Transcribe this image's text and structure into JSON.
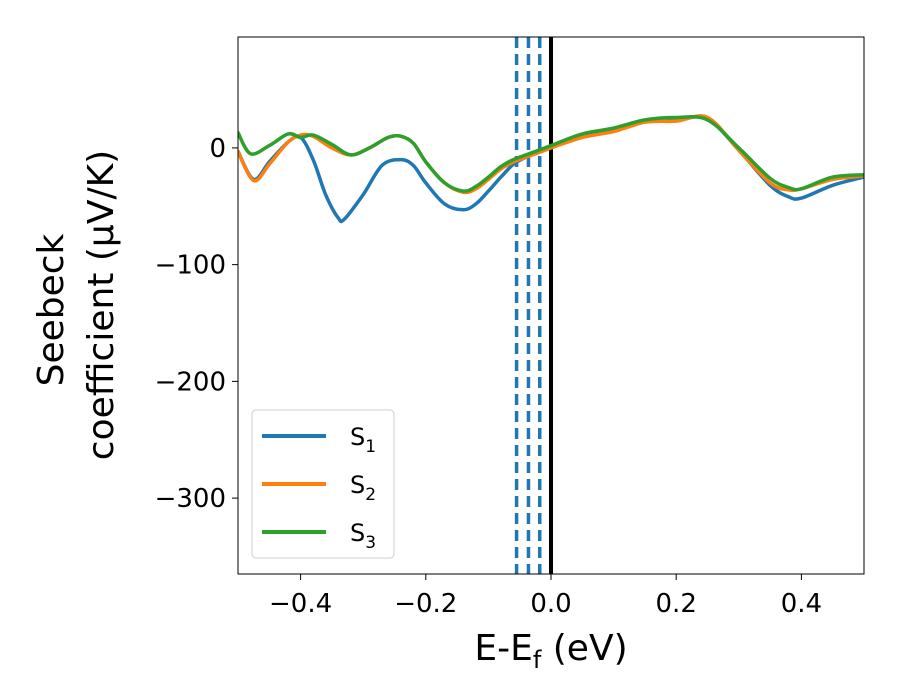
{
  "chart_data": {
    "type": "line",
    "title": "",
    "xlabel": "E-E",
    "xlabel_sub": "f",
    "xlabel_unit": " (eV)",
    "ylabel_line1": "Seebeck",
    "ylabel_line2": "coefficient  (μV/K)",
    "xlim": [
      -0.5,
      0.5
    ],
    "ylim": [
      -365,
      95
    ],
    "xticks": [
      -0.4,
      -0.2,
      0.0,
      0.2,
      0.4
    ],
    "xtick_labels": [
      "−0.4",
      "−0.2",
      "0.0",
      "0.2",
      "0.4"
    ],
    "yticks": [
      0,
      -100,
      -200,
      -300
    ],
    "ytick_labels": [
      "0",
      "−100",
      "−200",
      "−300"
    ],
    "legend_position": "lower-left",
    "vlines": [
      {
        "x": -0.055,
        "style": "dashed",
        "color": "#1f77b4"
      },
      {
        "x": -0.036,
        "style": "dashed",
        "color": "#1f77b4"
      },
      {
        "x": -0.018,
        "style": "dashed",
        "color": "#1f77b4"
      },
      {
        "x": 0.0,
        "style": "solid",
        "color": "#000000"
      }
    ],
    "series": [
      {
        "name": "S",
        "sub": "1",
        "color": "#1f77b4",
        "x": [
          -0.5,
          -0.475,
          -0.45,
          -0.42,
          -0.4,
          -0.38,
          -0.36,
          -0.34,
          -0.33,
          -0.3,
          -0.27,
          -0.24,
          -0.22,
          -0.2,
          -0.17,
          -0.14,
          -0.12,
          -0.1,
          -0.08,
          -0.06,
          -0.04,
          -0.02,
          0.0,
          0.05,
          0.1,
          0.15,
          0.2,
          0.25,
          0.3,
          0.35,
          0.38,
          0.4,
          0.45,
          0.5
        ],
        "y": [
          -3,
          -27,
          -12,
          5,
          9,
          -10,
          -40,
          -60,
          -61,
          -40,
          -15,
          -10,
          -15,
          -30,
          -48,
          -53,
          -48,
          -37,
          -25,
          -14,
          -8,
          -4,
          0,
          10,
          15,
          23,
          24,
          25,
          -2,
          -32,
          -42,
          -43,
          -32,
          -25
        ]
      },
      {
        "name": "S",
        "sub": "2",
        "color": "#ff7f0e",
        "x": [
          -0.5,
          -0.475,
          -0.45,
          -0.42,
          -0.4,
          -0.38,
          -0.35,
          -0.32,
          -0.29,
          -0.26,
          -0.24,
          -0.22,
          -0.2,
          -0.17,
          -0.14,
          -0.12,
          -0.1,
          -0.08,
          -0.06,
          -0.04,
          -0.02,
          0.0,
          0.05,
          0.1,
          0.15,
          0.2,
          0.25,
          0.3,
          0.35,
          0.38,
          0.4,
          0.45,
          0.5
        ],
        "y": [
          -3,
          -28,
          -14,
          5,
          11,
          10,
          0,
          -6,
          0,
          9,
          10,
          4,
          -12,
          -30,
          -38,
          -35,
          -27,
          -18,
          -12,
          -8,
          -4,
          0,
          9,
          14,
          22,
          23,
          26,
          -2,
          -30,
          -36,
          -35,
          -27,
          -24
        ]
      },
      {
        "name": "S",
        "sub": "3",
        "color": "#2ca02c",
        "x": [
          -0.5,
          -0.48,
          -0.45,
          -0.42,
          -0.4,
          -0.38,
          -0.35,
          -0.32,
          -0.29,
          -0.26,
          -0.24,
          -0.22,
          -0.2,
          -0.17,
          -0.14,
          -0.12,
          -0.1,
          -0.08,
          -0.06,
          -0.04,
          -0.02,
          0.0,
          0.05,
          0.1,
          0.15,
          0.2,
          0.25,
          0.3,
          0.35,
          0.38,
          0.4,
          0.45,
          0.5
        ],
        "y": [
          13,
          -5,
          2,
          12,
          9,
          11,
          3,
          -6,
          0,
          9,
          10,
          4,
          -12,
          -30,
          -37,
          -33,
          -25,
          -16,
          -10,
          -6,
          -2,
          2,
          12,
          17,
          24,
          26,
          24,
          0,
          -26,
          -34,
          -35,
          -25,
          -23
        ]
      }
    ]
  }
}
